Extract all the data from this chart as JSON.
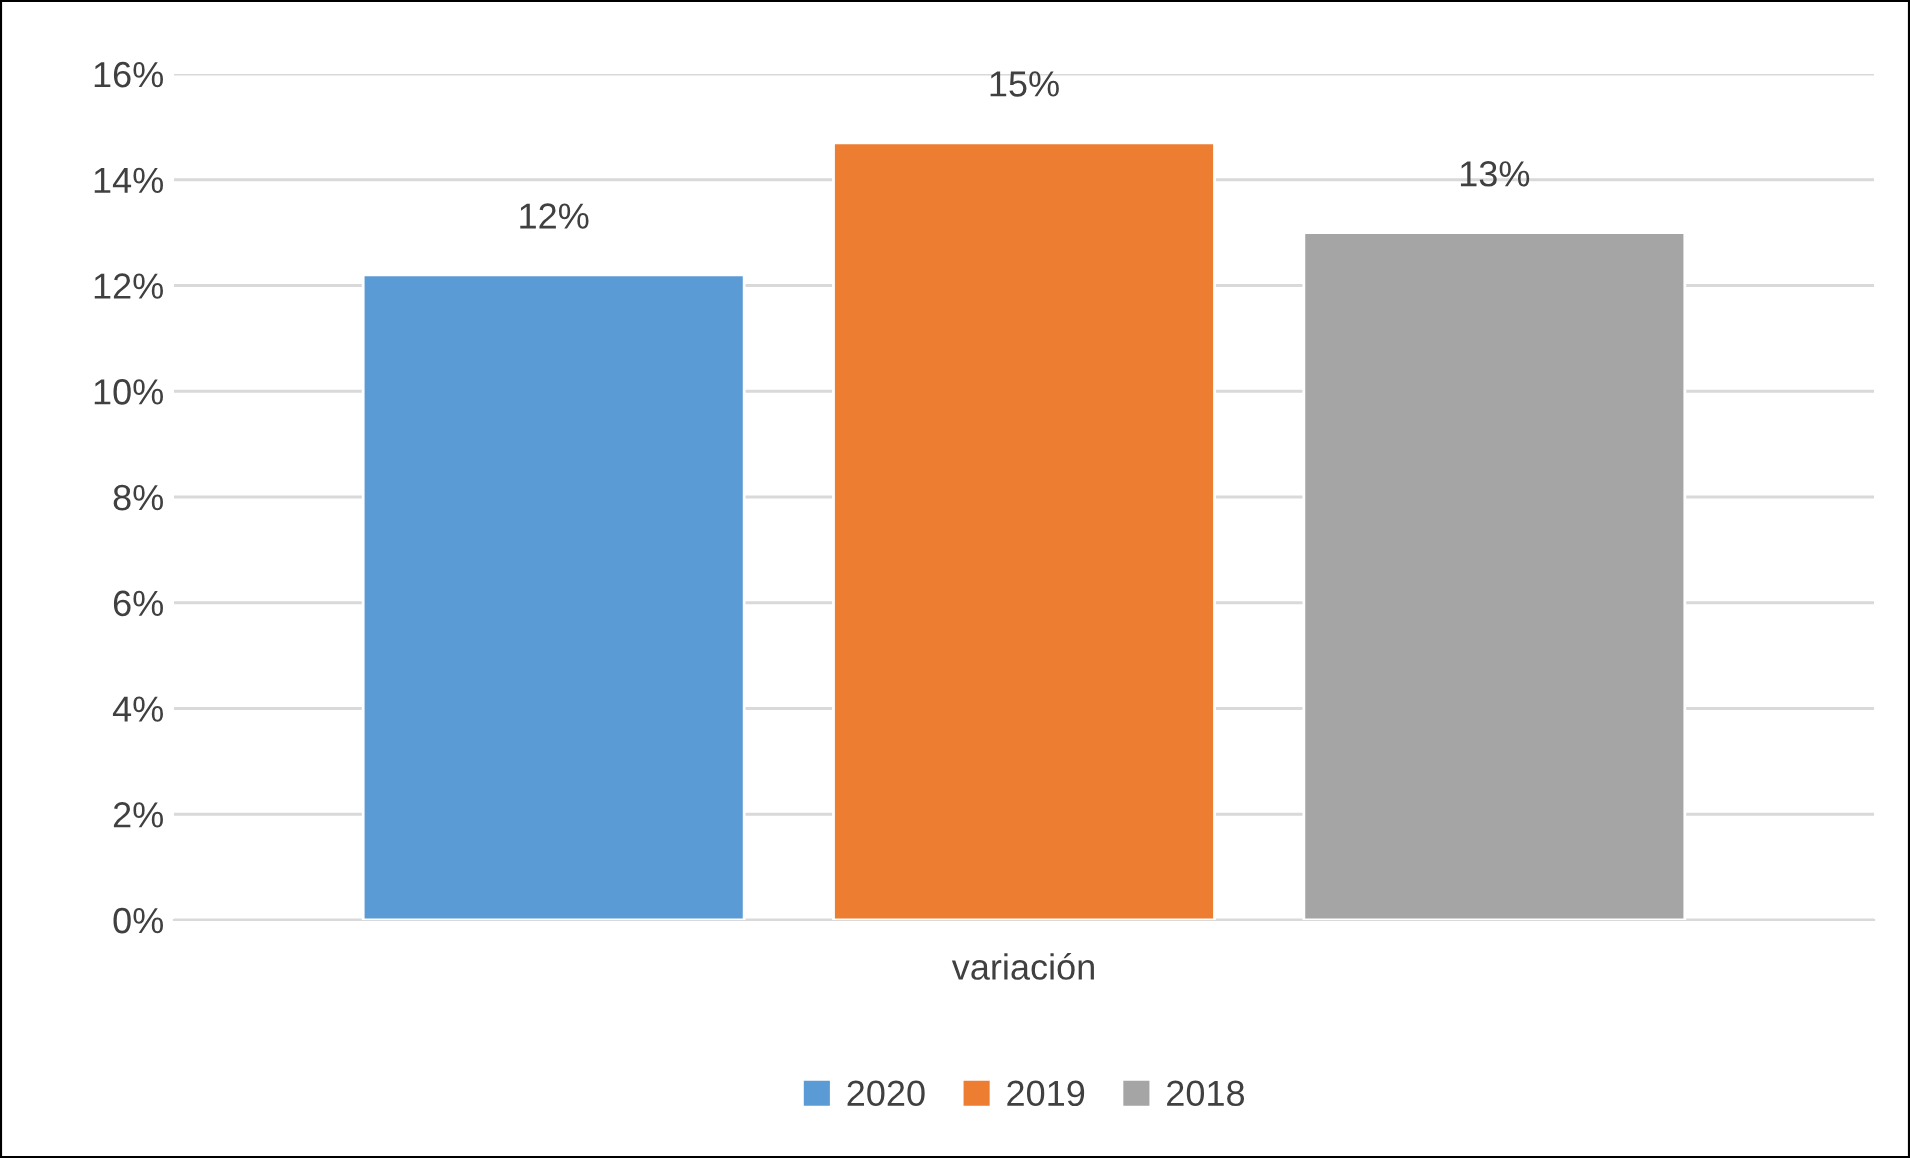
{
  "chart_data": {
    "type": "bar",
    "categories": [
      "variación"
    ],
    "series": [
      {
        "name": "2020",
        "color": "#5b9bd5",
        "values": [
          12.2
        ],
        "value_labels": [
          "12%"
        ]
      },
      {
        "name": "2019",
        "color": "#ed7d31",
        "values": [
          14.7
        ],
        "value_labels": [
          "15%"
        ]
      },
      {
        "name": "2018",
        "color": "#a5a5a5",
        "values": [
          13.0
        ],
        "value_labels": [
          "13%"
        ]
      }
    ],
    "ylim": [
      0,
      16
    ],
    "yticks": [
      {
        "value": 0,
        "label": "0%"
      },
      {
        "value": 2,
        "label": "2%"
      },
      {
        "value": 4,
        "label": "4%"
      },
      {
        "value": 6,
        "label": "6%"
      },
      {
        "value": 8,
        "label": "8%"
      },
      {
        "value": 10,
        "label": "10%"
      },
      {
        "value": 12,
        "label": "12%"
      },
      {
        "value": 14,
        "label": "14%"
      },
      {
        "value": 16,
        "label": "16%"
      }
    ],
    "grid": "y",
    "legend": "bottom"
  }
}
